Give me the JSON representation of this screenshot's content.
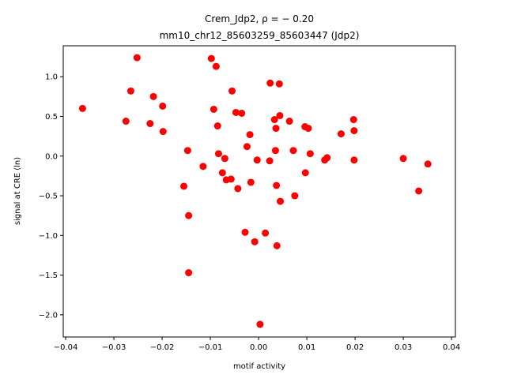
{
  "chart_data": {
    "type": "scatter",
    "title_line1": "Crem_Jdp2, ρ = − 0.20",
    "title_line2": "mm10_chr12_85603259_85603447 (Jdp2)",
    "xlabel": "motif activity",
    "ylabel": "signal at CRE (ln)",
    "xlim": [
      -0.0405,
      0.0408
    ],
    "ylim": [
      -2.28,
      1.39
    ],
    "xticks": [
      -0.04,
      -0.03,
      -0.02,
      -0.01,
      0.0,
      0.01,
      0.02,
      0.03,
      0.04
    ],
    "xtick_labels": [
      "−0.04",
      "−0.03",
      "−0.02",
      "−0.01",
      "0.00",
      "0.01",
      "0.02",
      "0.03",
      "0.04"
    ],
    "yticks": [
      -2.0,
      -1.5,
      -1.0,
      -0.5,
      0.0,
      0.5,
      1.0
    ],
    "ytick_labels": [
      "−2.0",
      "−1.5",
      "−1.0",
      "−0.5",
      "0.0",
      "0.5",
      "1.0"
    ],
    "grid": false,
    "marker_color": "#ff0000",
    "points": [
      {
        "x": -0.0365,
        "y": 0.6
      },
      {
        "x": -0.0275,
        "y": 0.44
      },
      {
        "x": -0.0265,
        "y": 0.82
      },
      {
        "x": -0.0252,
        "y": 1.24
      },
      {
        "x": -0.0225,
        "y": 0.41
      },
      {
        "x": -0.0218,
        "y": 0.75
      },
      {
        "x": -0.0199,
        "y": 0.63
      },
      {
        "x": -0.0198,
        "y": 0.31
      },
      {
        "x": -0.0155,
        "y": -0.38
      },
      {
        "x": -0.0147,
        "y": 0.07
      },
      {
        "x": -0.0145,
        "y": -0.75
      },
      {
        "x": -0.0145,
        "y": -1.47
      },
      {
        "x": -0.0115,
        "y": -0.13
      },
      {
        "x": -0.0098,
        "y": 1.23
      },
      {
        "x": -0.0093,
        "y": 0.59
      },
      {
        "x": -0.0088,
        "y": 1.13
      },
      {
        "x": -0.0085,
        "y": 0.38
      },
      {
        "x": -0.0083,
        "y": 0.03
      },
      {
        "x": -0.0075,
        "y": -0.21
      },
      {
        "x": -0.007,
        "y": -0.03
      },
      {
        "x": -0.0067,
        "y": -0.3
      },
      {
        "x": -0.0057,
        "y": -0.29
      },
      {
        "x": -0.0055,
        "y": 0.82
      },
      {
        "x": -0.0047,
        "y": 0.55
      },
      {
        "x": -0.0043,
        "y": -0.41
      },
      {
        "x": -0.0035,
        "y": 0.54
      },
      {
        "x": -0.0028,
        "y": -0.96
      },
      {
        "x": -0.0024,
        "y": 0.12
      },
      {
        "x": -0.0018,
        "y": 0.27
      },
      {
        "x": -0.0016,
        "y": -0.33
      },
      {
        "x": -0.0008,
        "y": -1.08
      },
      {
        "x": -0.0003,
        "y": -0.05
      },
      {
        "x": 0.0003,
        "y": -2.12
      },
      {
        "x": 0.0014,
        "y": -0.97
      },
      {
        "x": 0.0023,
        "y": -0.06
      },
      {
        "x": 0.0024,
        "y": 0.92
      },
      {
        "x": 0.0033,
        "y": 0.46
      },
      {
        "x": 0.0035,
        "y": 0.07
      },
      {
        "x": 0.0036,
        "y": 0.35
      },
      {
        "x": 0.0037,
        "y": -0.37
      },
      {
        "x": 0.0038,
        "y": -1.13
      },
      {
        "x": 0.0043,
        "y": 0.91
      },
      {
        "x": 0.0044,
        "y": 0.51
      },
      {
        "x": 0.0045,
        "y": -0.57
      },
      {
        "x": 0.0064,
        "y": 0.44
      },
      {
        "x": 0.0072,
        "y": 0.07
      },
      {
        "x": 0.0075,
        "y": -0.5
      },
      {
        "x": 0.0096,
        "y": 0.37
      },
      {
        "x": 0.0097,
        "y": -0.21
      },
      {
        "x": 0.0103,
        "y": 0.35
      },
      {
        "x": 0.0107,
        "y": 0.03
      },
      {
        "x": 0.0137,
        "y": -0.05
      },
      {
        "x": 0.0142,
        "y": -0.02
      },
      {
        "x": 0.0171,
        "y": 0.28
      },
      {
        "x": 0.0197,
        "y": 0.46
      },
      {
        "x": 0.0198,
        "y": 0.32
      },
      {
        "x": 0.0198,
        "y": -0.05
      },
      {
        "x": 0.03,
        "y": -0.03
      },
      {
        "x": 0.0332,
        "y": -0.44
      },
      {
        "x": 0.0351,
        "y": -0.1
      }
    ]
  }
}
